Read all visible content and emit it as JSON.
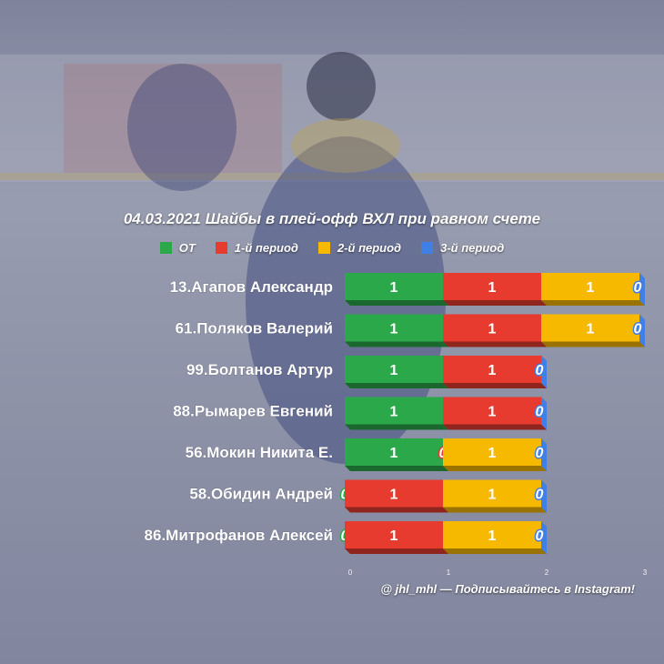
{
  "title": "04.03.2021 Шайбы в плей-офф ВХЛ при равном счете",
  "footer": "@ jhl_mhl — Подписывайтесь в Instagram!",
  "colors": {
    "OT": "#2aa84a",
    "p1": "#e63b2e",
    "p2": "#f7b800",
    "p3": "#3f7fe6"
  },
  "chart_data": {
    "type": "bar",
    "orientation": "horizontal",
    "stacked": true,
    "categories": [
      "13.Агапов Александр",
      "61.Поляков Валерий",
      "99.Болтанов Артур",
      "88.Рымарев Евгений",
      "56.Мокин Никита Е.",
      "58.Обидин Андрей",
      "86.Митрофанов Алексей"
    ],
    "series": [
      {
        "name": "OT",
        "color": "#2aa84a",
        "values": [
          1,
          1,
          1,
          1,
          1,
          0,
          0
        ]
      },
      {
        "name": "1-й период",
        "color": "#e63b2e",
        "values": [
          1,
          1,
          1,
          1,
          0,
          1,
          1
        ]
      },
      {
        "name": "2-й период",
        "color": "#f7b800",
        "values": [
          1,
          1,
          0,
          0,
          1,
          1,
          1
        ]
      },
      {
        "name": "3-й период",
        "color": "#3f7fe6",
        "values": [
          0,
          0,
          0,
          0,
          0,
          0,
          0
        ]
      }
    ],
    "xlim": [
      0,
      3
    ],
    "xticks": [
      "0",
      "1",
      "2",
      "3"
    ],
    "legend": "top"
  }
}
